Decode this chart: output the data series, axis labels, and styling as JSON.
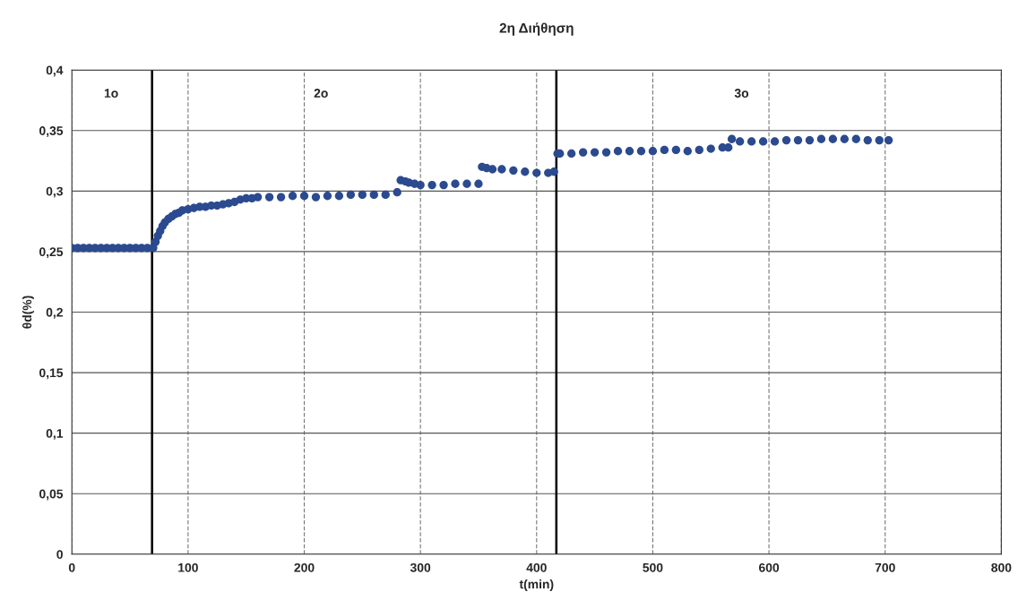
{
  "chart_data": {
    "type": "scatter",
    "title": "2η Διήθηση",
    "xlabel": "t(min)",
    "ylabel": "θd(%)",
    "xlim": [
      0,
      800
    ],
    "xticks": [
      0,
      100,
      200,
      300,
      400,
      500,
      600,
      700,
      800
    ],
    "ylim": [
      0,
      0.4
    ],
    "yticks": [
      {
        "value": 0,
        "label": "0"
      },
      {
        "value": 0.05,
        "label": "0,05"
      },
      {
        "value": 0.1,
        "label": "0,1"
      },
      {
        "value": 0.15,
        "label": "0,15"
      },
      {
        "value": 0.2,
        "label": "0,2"
      },
      {
        "value": 0.25,
        "label": "0,25"
      },
      {
        "value": 0.3,
        "label": "0,3"
      },
      {
        "value": 0.35,
        "label": "0,35"
      },
      {
        "value": 0.4,
        "label": "0,4"
      }
    ],
    "grid": true,
    "marker": "circle",
    "series": [
      {
        "color": "#2b4a8f",
        "x": [
          0,
          5,
          10,
          15,
          20,
          25,
          30,
          35,
          40,
          45,
          50,
          55,
          60,
          65,
          70,
          72,
          74,
          76,
          78,
          80,
          83,
          86,
          89,
          92,
          95,
          100,
          105,
          110,
          115,
          120,
          125,
          130,
          135,
          140,
          145,
          150,
          155,
          160,
          170,
          180,
          190,
          200,
          210,
          220,
          230,
          240,
          250,
          260,
          270,
          280,
          283,
          287,
          290,
          295,
          300,
          310,
          320,
          330,
          340,
          350,
          353,
          357,
          362,
          370,
          380,
          390,
          400,
          410,
          415,
          418,
          420,
          430,
          440,
          450,
          460,
          470,
          480,
          490,
          500,
          510,
          520,
          530,
          540,
          550,
          560,
          565,
          568,
          575,
          585,
          595,
          605,
          615,
          625,
          635,
          645,
          655,
          665,
          675,
          685,
          695,
          703
        ],
        "values": [
          0.253,
          0.253,
          0.253,
          0.253,
          0.253,
          0.253,
          0.253,
          0.253,
          0.253,
          0.253,
          0.253,
          0.253,
          0.253,
          0.253,
          0.253,
          0.258,
          0.263,
          0.267,
          0.271,
          0.274,
          0.277,
          0.279,
          0.281,
          0.282,
          0.284,
          0.285,
          0.286,
          0.287,
          0.287,
          0.288,
          0.288,
          0.289,
          0.29,
          0.291,
          0.293,
          0.294,
          0.294,
          0.295,
          0.295,
          0.295,
          0.296,
          0.296,
          0.295,
          0.296,
          0.296,
          0.297,
          0.297,
          0.297,
          0.297,
          0.299,
          0.309,
          0.308,
          0.307,
          0.306,
          0.305,
          0.305,
          0.305,
          0.306,
          0.306,
          0.306,
          0.32,
          0.319,
          0.318,
          0.318,
          0.317,
          0.316,
          0.315,
          0.315,
          0.316,
          0.331,
          0.331,
          0.331,
          0.332,
          0.332,
          0.332,
          0.333,
          0.333,
          0.333,
          0.333,
          0.334,
          0.334,
          0.333,
          0.334,
          0.335,
          0.336,
          0.336,
          0.343,
          0.341,
          0.341,
          0.341,
          0.341,
          0.342,
          0.342,
          0.342,
          0.343,
          0.343,
          0.343,
          0.343,
          0.342,
          0.342,
          0.342
        ]
      }
    ],
    "ref_lines": [
      {
        "axis": "x",
        "value": 69,
        "color": "#000000"
      },
      {
        "axis": "x",
        "value": 417,
        "color": "#000000"
      }
    ],
    "annotations": [
      "1o",
      "2o",
      "3o"
    ]
  }
}
